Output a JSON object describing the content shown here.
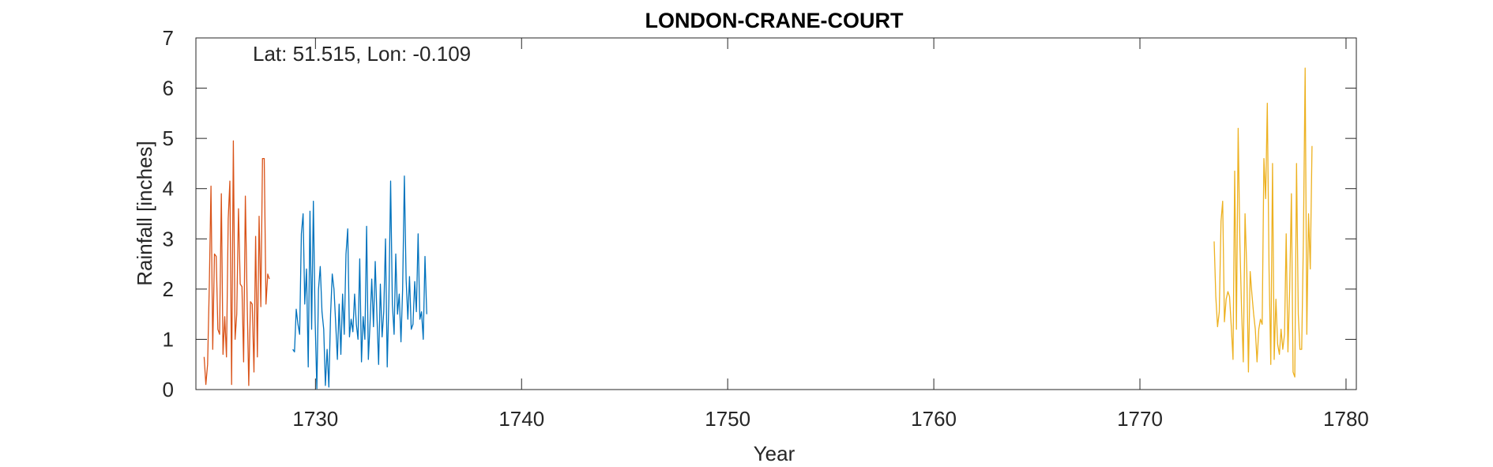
{
  "chart_data": {
    "type": "line",
    "title": "LONDON-CRANE-COURT",
    "annotation": "Lat: 51.515, Lon: -0.109",
    "xlabel": "Year",
    "ylabel": "Rainfall [inches]",
    "xlim": [
      1724.2,
      1780.5
    ],
    "ylim": [
      0,
      7
    ],
    "xticks": [
      1730,
      1740,
      1750,
      1760,
      1770,
      1780
    ],
    "yticks": [
      0,
      1,
      2,
      3,
      4,
      5,
      6,
      7
    ],
    "grid": false,
    "series": [
      {
        "color": "#d95319",
        "x_start": 1724.6,
        "x_step": 0.0833,
        "values": [
          0.65,
          0.1,
          0.5,
          2.1,
          4.05,
          0.8,
          2.7,
          2.65,
          1.2,
          1.1,
          3.9,
          0.7,
          1.45,
          0.65,
          3.4,
          4.15,
          0.1,
          4.95,
          1.0,
          1.5,
          3.6,
          2.1,
          2.05,
          0.55,
          3.85,
          1.8,
          0.08,
          1.75,
          1.7,
          0.35,
          3.05,
          0.65,
          3.45,
          1.65,
          4.6,
          4.6,
          1.7,
          2.3,
          2.2
        ]
      },
      {
        "color": "#0072bd",
        "x_start": 1728.9,
        "x_step": 0.0833,
        "values": [
          0.8,
          0.75,
          1.6,
          1.3,
          1.1,
          3.1,
          3.5,
          1.7,
          2.4,
          0.45,
          3.55,
          1.2,
          3.75,
          1.4,
          0.02,
          2.0,
          2.45,
          1.55,
          1.2,
          0.08,
          0.8,
          0.05,
          1.5,
          2.3,
          2.0,
          1.3,
          0.6,
          1.7,
          0.7,
          1.9,
          1.1,
          2.7,
          3.2,
          1.05,
          1.4,
          1.15,
          1.9,
          1.3,
          1.0,
          2.6,
          0.55,
          1.45,
          1.0,
          3.25,
          0.6,
          1.3,
          2.2,
          1.25,
          2.55,
          1.5,
          0.5,
          2.1,
          1.05,
          1.55,
          3.0,
          0.45,
          1.8,
          4.15,
          1.7,
          1.1,
          2.7,
          1.5,
          1.9,
          0.95,
          2.0,
          4.25,
          2.2,
          1.4,
          2.25,
          1.2,
          1.3,
          2.15,
          1.55,
          3.1,
          1.4,
          1.55,
          1.0,
          2.65,
          1.5
        ]
      },
      {
        "color": "#edb120",
        "x_start": 1773.6,
        "x_step": 0.0833,
        "values": [
          2.95,
          1.85,
          1.25,
          1.55,
          3.35,
          3.75,
          1.35,
          1.8,
          1.95,
          1.85,
          1.25,
          0.6,
          4.35,
          1.2,
          5.2,
          2.9,
          1.6,
          0.55,
          3.5,
          2.4,
          0.35,
          2.35,
          1.9,
          1.5,
          1.2,
          0.55,
          1.2,
          1.4,
          1.3,
          4.6,
          3.8,
          5.7,
          2.4,
          0.5,
          4.5,
          0.6,
          1.8,
          0.9,
          0.7,
          1.2,
          0.8,
          1.1,
          3.1,
          0.75,
          2.0,
          3.9,
          0.35,
          0.25,
          4.5,
          1.5,
          0.8,
          0.8,
          3.0,
          6.4,
          1.1,
          3.5,
          2.4,
          4.85
        ]
      }
    ]
  }
}
